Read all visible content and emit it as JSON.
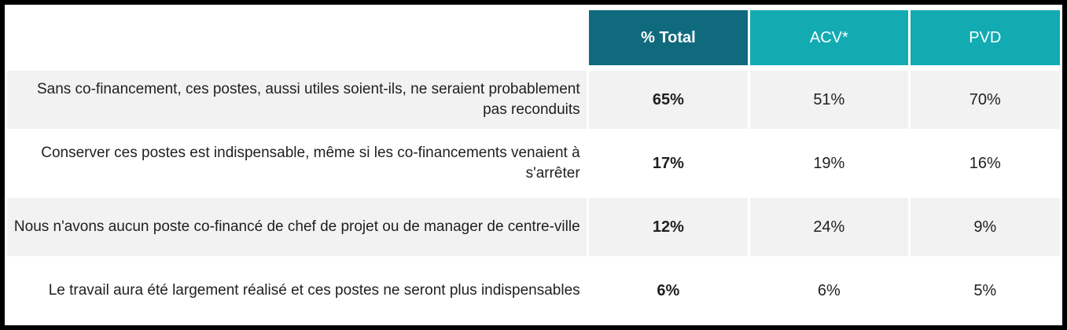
{
  "chart_data": {
    "type": "table",
    "title": "",
    "columns": [
      "% Total",
      "ACV*",
      "PVD"
    ],
    "rows": [
      {
        "label": "Sans co-financement, ces postes, aussi utiles soient-ils, ne seraient probablement pas reconduits",
        "total": "65%",
        "acv": "51%",
        "pvd": "70%"
      },
      {
        "label": "Conserver ces postes est indispensable, même si les co-financements venaient à s'arrêter",
        "total": "17%",
        "acv": "19%",
        "pvd": "16%"
      },
      {
        "label": "Nous n'avons aucun poste co-financé de chef de projet ou de manager de centre-ville",
        "total": "12%",
        "acv": "24%",
        "pvd": "9%"
      },
      {
        "label": "Le travail aura été largement réalisé et ces postes ne seront plus indispensables",
        "total": "6%",
        "acv": "6%",
        "pvd": "5%"
      }
    ],
    "layout": {
      "label_alignment": "right",
      "value_alignment": "center",
      "striped_rows": true
    }
  },
  "colors": {
    "header_total_bg": "#106A7E",
    "header_sub_bg": "#12ABB2",
    "row_alt_bg": "#F2F2F2",
    "header_text": "#FFFFFF",
    "body_text": "#1F1F1F",
    "frame_color": "#000000",
    "page_bg": "#FFFFFF"
  }
}
